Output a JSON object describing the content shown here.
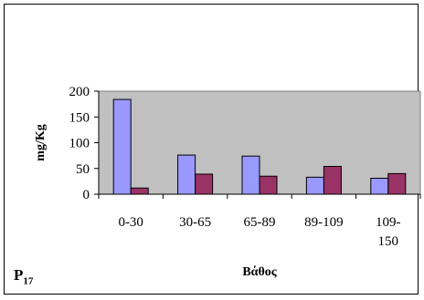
{
  "chart_data": {
    "type": "bar",
    "categories": [
      "0-30",
      "30-65",
      "65-89",
      "89-109",
      "109-150"
    ],
    "category_lines": [
      [
        "0-30"
      ],
      [
        "30-65"
      ],
      [
        "65-89"
      ],
      [
        "89-109"
      ],
      [
        "109-",
        "150"
      ]
    ],
    "series": [
      {
        "values": [
          184,
          76,
          74,
          33,
          31
        ],
        "color": "#9999ff"
      },
      {
        "values": [
          12,
          39,
          35,
          54,
          40
        ],
        "color": "#993366"
      }
    ],
    "xlabel": "Βάθος",
    "ylabel": "mg/Kg",
    "ylim": [
      0,
      200
    ],
    "yticks": [
      0,
      50,
      100,
      150,
      200
    ],
    "plot_background": "#c0c0c0",
    "grid": false,
    "legend": "none"
  },
  "panel_label": {
    "main": "P",
    "sub": "17"
  }
}
